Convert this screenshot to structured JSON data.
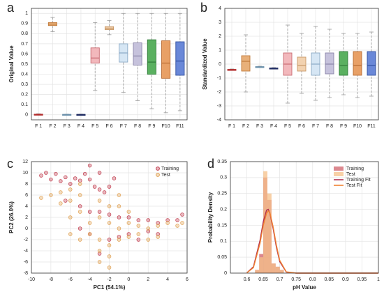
{
  "chart_data": [
    {
      "type": "box",
      "panel": "a",
      "ylabel": "Original Value",
      "categories": [
        "F 1",
        "F 2",
        "F 3",
        "F 4",
        "F 5",
        "F 6",
        "F 7",
        "F 8",
        "F 9",
        "F10",
        "F11"
      ],
      "stats": [
        {
          "min": 0,
          "q1": 0,
          "median": 0.003,
          "q3": 0.006,
          "max": 0.01
        },
        {
          "min": 0.82,
          "q1": 0.88,
          "median": 0.895,
          "q3": 0.91,
          "max": 0.96
        },
        {
          "min": 0,
          "q1": 0,
          "median": 0.002,
          "q3": 0.004,
          "max": 0.006
        },
        {
          "min": 0,
          "q1": 0,
          "median": 0.002,
          "q3": 0.004,
          "max": 0.006
        },
        {
          "min": 0.24,
          "q1": 0.51,
          "median": 0.56,
          "q3": 0.66,
          "max": 0.91
        },
        {
          "min": 0.79,
          "q1": 0.84,
          "median": 0.855,
          "q3": 0.87,
          "max": 0.93
        },
        {
          "min": 0.22,
          "q1": 0.52,
          "median": 0.61,
          "q3": 0.7,
          "max": 1
        },
        {
          "min": 0.14,
          "q1": 0.49,
          "median": 0.58,
          "q3": 0.71,
          "max": 1
        },
        {
          "min": 0.06,
          "q1": 0.4,
          "median": 0.52,
          "q3": 0.74,
          "max": 1
        },
        {
          "min": 0.02,
          "q1": 0.36,
          "median": 0.51,
          "q3": 0.73,
          "max": 1
        },
        {
          "min": 0.04,
          "q1": 0.39,
          "median": 0.53,
          "q3": 0.72,
          "max": 1
        }
      ],
      "colors": [
        "#d94f4f",
        "#e8b07a",
        "#a6c2d6",
        "#3a4a90",
        "#f2b8bc",
        "#f2d2b0",
        "#d6e6f4",
        "#c6c2dc",
        "#5ab060",
        "#e8a066",
        "#6a88d8"
      ],
      "edge_colors": [
        "#b02a2a",
        "#c07a3a",
        "#6a8faa",
        "#1e2a60",
        "#c96a72",
        "#c89868",
        "#8aa8c4",
        "#8a84a8",
        "#2e7a38",
        "#b86a30",
        "#3050a0"
      ],
      "ylim": [
        -0.05,
        1.05
      ],
      "yticks": [
        0,
        0.1,
        0.2,
        0.3,
        0.4,
        0.5,
        0.6,
        0.7,
        0.8,
        0.9,
        1
      ],
      "grid": true
    },
    {
      "type": "box",
      "panel": "b",
      "ylabel": "Standardized Value",
      "categories": [
        "F 1",
        "F 2",
        "F 3",
        "F 4",
        "F 5",
        "F 6",
        "F 7",
        "F 8",
        "F 9",
        "F10",
        "F11"
      ],
      "stats": [
        {
          "min": -0.45,
          "q1": -0.42,
          "median": -0.4,
          "q3": -0.38,
          "max": -0.35
        },
        {
          "min": -2,
          "q1": -0.5,
          "median": 0.2,
          "q3": 0.6,
          "max": 2.1
        },
        {
          "min": -0.25,
          "q1": -0.22,
          "median": -0.2,
          "q3": -0.18,
          "max": -0.15
        },
        {
          "min": -0.35,
          "q1": -0.32,
          "median": -0.3,
          "q3": -0.28,
          "max": -0.25
        },
        {
          "min": -2.8,
          "q1": -0.8,
          "median": 0,
          "q3": 0.8,
          "max": 2.8
        },
        {
          "min": -2.1,
          "q1": -0.5,
          "median": -0.1,
          "q3": 0.5,
          "max": 2.2
        },
        {
          "min": -2.6,
          "q1": -0.8,
          "median": 0,
          "q3": 0.8,
          "max": 2.7
        },
        {
          "min": -2.4,
          "q1": -0.7,
          "median": 0,
          "q3": 0.8,
          "max": 2.5
        },
        {
          "min": -2.2,
          "q1": -0.8,
          "median": -0.1,
          "q3": 0.9,
          "max": 2.2
        },
        {
          "min": -2.4,
          "q1": -0.8,
          "median": -0.1,
          "q3": 0.9,
          "max": 2.2
        },
        {
          "min": -2.3,
          "q1": -0.8,
          "median": -0.1,
          "q3": 0.9,
          "max": 2.3
        }
      ],
      "colors": [
        "#d94f4f",
        "#e8b07a",
        "#a6c2d6",
        "#3a4a90",
        "#f2b8bc",
        "#f2d2b0",
        "#d6e6f4",
        "#c6c2dc",
        "#5ab060",
        "#e8a066",
        "#6a88d8"
      ],
      "edge_colors": [
        "#b02a2a",
        "#c07a3a",
        "#6a8faa",
        "#1e2a60",
        "#c96a72",
        "#c89868",
        "#8aa8c4",
        "#8a84a8",
        "#2e7a38",
        "#b86a30",
        "#3050a0"
      ],
      "ylim": [
        -4,
        4
      ],
      "yticks": [
        -4,
        -3,
        -2,
        -1,
        0,
        1,
        2,
        3,
        4
      ],
      "grid": true
    },
    {
      "type": "scatter",
      "panel": "c",
      "xlabel": "PC1 (54.1%)",
      "ylabel": "PC2 (26.0%)",
      "series": [
        {
          "name": "Training",
          "color": "#c0394b",
          "x": [
            -9,
            -8.5,
            -8,
            -7.5,
            -7,
            -6.5,
            -6,
            -5.5,
            -5,
            -4.5,
            -4,
            -3.5,
            -3,
            -2.5,
            -2,
            -1.5,
            -3,
            -4,
            -6.5,
            -5,
            -4,
            -3,
            -2,
            -1,
            0,
            1,
            2,
            3,
            4,
            5,
            5.5,
            -2,
            -1,
            0,
            1,
            2,
            3,
            -4,
            -5,
            -3
          ],
          "values": [
            9.5,
            10,
            8.8,
            9.8,
            8.5,
            9.2,
            8,
            9,
            8.6,
            9.8,
            8.8,
            7.5,
            7,
            6.5,
            7.5,
            9,
            10,
            11.3,
            5,
            4,
            3,
            3,
            2.5,
            2,
            2,
            1.5,
            1.5,
            1,
            1.5,
            1.5,
            2.5,
            -2,
            -1.5,
            -1,
            -2,
            -0.5,
            -1,
            -1,
            0,
            -4.5
          ]
        },
        {
          "name": "Test",
          "color": "#e0a050",
          "x": [
            -9,
            -8,
            -7,
            -7,
            -6,
            -5,
            -6,
            -5,
            -4,
            -3,
            -2,
            -1,
            0,
            1,
            2,
            3,
            4,
            5,
            5.5,
            -4,
            -3,
            -2,
            -1,
            0,
            1,
            2,
            3,
            -3,
            -2,
            -3,
            -2,
            -5,
            -6,
            -1,
            0,
            -2,
            -3,
            -1,
            -5,
            -6
          ],
          "values": [
            5.5,
            6,
            6.5,
            4.5,
            5,
            6,
            2,
            3,
            1,
            2,
            1,
            0,
            1,
            0.5,
            0,
            0.5,
            1,
            0.5,
            1,
            -1,
            -2,
            -3,
            -2,
            -1.5,
            -1,
            -2,
            -1.5,
            -4,
            -5,
            -6,
            -7,
            -2,
            -1,
            4,
            3,
            4,
            5,
            6,
            8,
            7
          ]
        }
      ],
      "xlim": [
        -10,
        6
      ],
      "xticks": [
        -10,
        -8,
        -6,
        -4,
        -2,
        0,
        2,
        4,
        6
      ],
      "ylim": [
        -8,
        12
      ],
      "yticks": [
        -8,
        -6,
        -4,
        -2,
        0,
        2,
        4,
        6,
        8,
        10,
        12
      ],
      "grid": true,
      "legend": "top-right"
    },
    {
      "type": "histogram",
      "panel": "d",
      "xlabel": "pH Value",
      "ylabel": "Probability Density",
      "bins": [
        0.625,
        0.6375,
        0.65,
        0.6625,
        0.675,
        0.6875,
        0.7,
        0.7125
      ],
      "series": [
        {
          "name": "Training",
          "color": "#d0606a",
          "values": [
            0.01,
            0.06,
            0.3,
            0.23,
            0.03,
            0.02,
            0.01
          ]
        },
        {
          "name": "Test",
          "color": "#f5c088",
          "values": [
            0.01,
            0.05,
            0.32,
            0.25,
            0.03,
            0.02,
            0.01
          ]
        }
      ],
      "lines": [
        {
          "name": "Training Fit",
          "color": "#b03050",
          "x": [
            0.6,
            0.62,
            0.64,
            0.65,
            0.66,
            0.665,
            0.67,
            0.68,
            0.69,
            0.7,
            0.72,
            0.75,
            0.8,
            0.9,
            1
          ],
          "values": [
            0.001,
            0.02,
            0.103,
            0.162,
            0.198,
            0.2,
            0.188,
            0.139,
            0.08,
            0.036,
            0.003,
            0,
            0,
            0,
            0
          ]
        },
        {
          "name": "Test Fit",
          "color": "#f08030",
          "x": [
            0.6,
            0.62,
            0.64,
            0.65,
            0.66,
            0.665,
            0.67,
            0.68,
            0.69,
            0.7,
            0.72,
            0.75,
            0.8,
            0.9,
            1
          ],
          "values": [
            0.001,
            0.017,
            0.093,
            0.15,
            0.188,
            0.195,
            0.19,
            0.145,
            0.087,
            0.04,
            0.004,
            0,
            0,
            0,
            0
          ]
        }
      ],
      "xlim": [
        0.55,
        1.0
      ],
      "xticks": [
        0.6,
        0.65,
        0.7,
        0.75,
        0.8,
        0.85,
        0.9,
        0.95,
        1
      ],
      "ylim": [
        0,
        0.35
      ],
      "yticks": [
        0,
        0.05,
        0.1,
        0.15,
        0.2,
        0.25,
        0.3,
        0.35
      ],
      "grid": true,
      "legend": "top-right"
    }
  ]
}
